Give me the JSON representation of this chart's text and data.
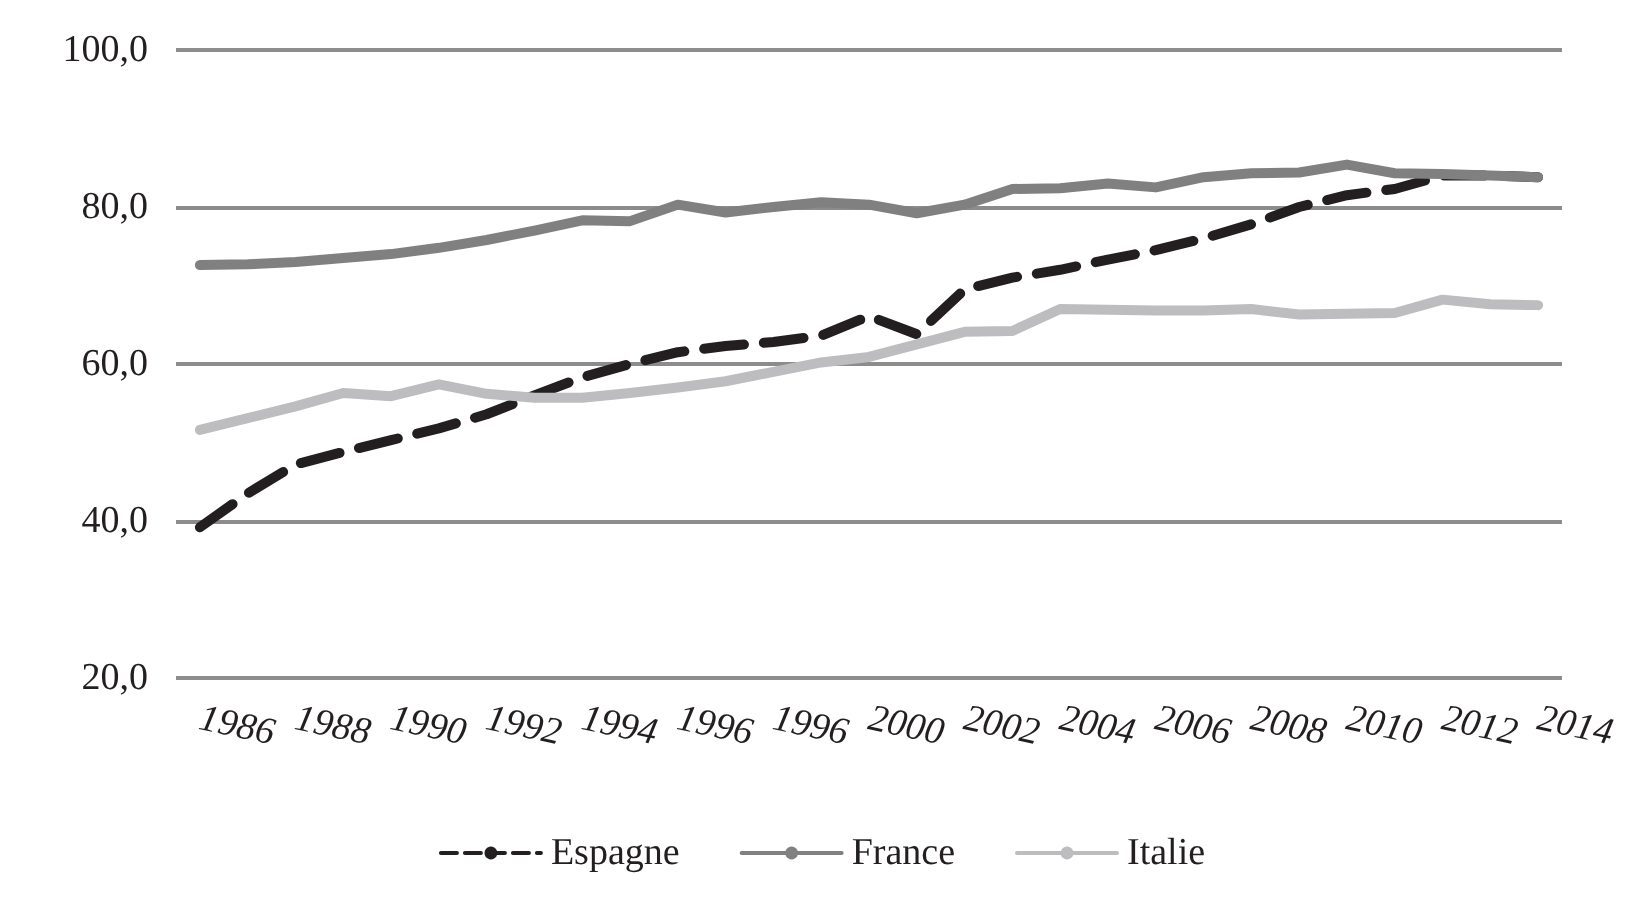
{
  "chart_data": {
    "type": "line",
    "categories": [
      "1986",
      null,
      "1988",
      null,
      "1990",
      null,
      "1992",
      null,
      "1994",
      null,
      "1996",
      null,
      "1996",
      null,
      "2000",
      null,
      "2002",
      null,
      "2004",
      null,
      "2006",
      null,
      "2008",
      null,
      "2010",
      null,
      "2012",
      null,
      "2014"
    ],
    "series": [
      {
        "name": "Espagne",
        "color": "#231f20",
        "line_style": "dashed",
        "values": [
          39.2,
          43.5,
          47.2,
          48.8,
          50.3,
          51.8,
          53.6,
          56.0,
          58.3,
          60.0,
          61.5,
          62.3,
          62.8,
          63.6,
          66.1,
          63.8,
          69.5,
          71.0,
          72.0,
          73.3,
          74.5,
          76.0,
          77.8,
          80.0,
          81.5,
          82.3,
          84.0,
          84.0,
          83.8
        ]
      },
      {
        "name": "France",
        "color": "#808080",
        "line_style": "solid",
        "values": [
          72.6,
          72.7,
          73.0,
          73.5,
          74.0,
          74.8,
          75.8,
          77.0,
          78.3,
          78.2,
          80.3,
          79.3,
          80.0,
          80.6,
          80.3,
          79.2,
          80.3,
          82.3,
          82.4,
          83.0,
          82.5,
          83.8,
          84.3,
          84.4,
          85.4,
          84.3,
          84.2,
          84.0,
          83.8
        ]
      },
      {
        "name": "Italie",
        "color": "#bdbdbf",
        "line_style": "solid",
        "values": [
          51.6,
          53.1,
          54.6,
          56.3,
          55.9,
          57.4,
          56.2,
          55.7,
          55.7,
          56.3,
          57.0,
          57.8,
          59.0,
          60.2,
          60.9,
          62.5,
          64.1,
          64.2,
          67.0,
          66.9,
          66.8,
          66.8,
          67.0,
          66.3,
          66.4,
          66.5,
          68.2,
          67.6,
          67.5
        ]
      }
    ],
    "ylim": [
      20,
      100
    ],
    "yticks": [
      {
        "value": 20,
        "label": "20,0"
      },
      {
        "value": 40,
        "label": "40,0"
      },
      {
        "value": 60,
        "label": "60,0"
      },
      {
        "value": 80,
        "label": "80,0"
      },
      {
        "value": 100,
        "label": "100,0"
      }
    ],
    "grid": "y",
    "legend": "bottom",
    "marker": "none"
  }
}
